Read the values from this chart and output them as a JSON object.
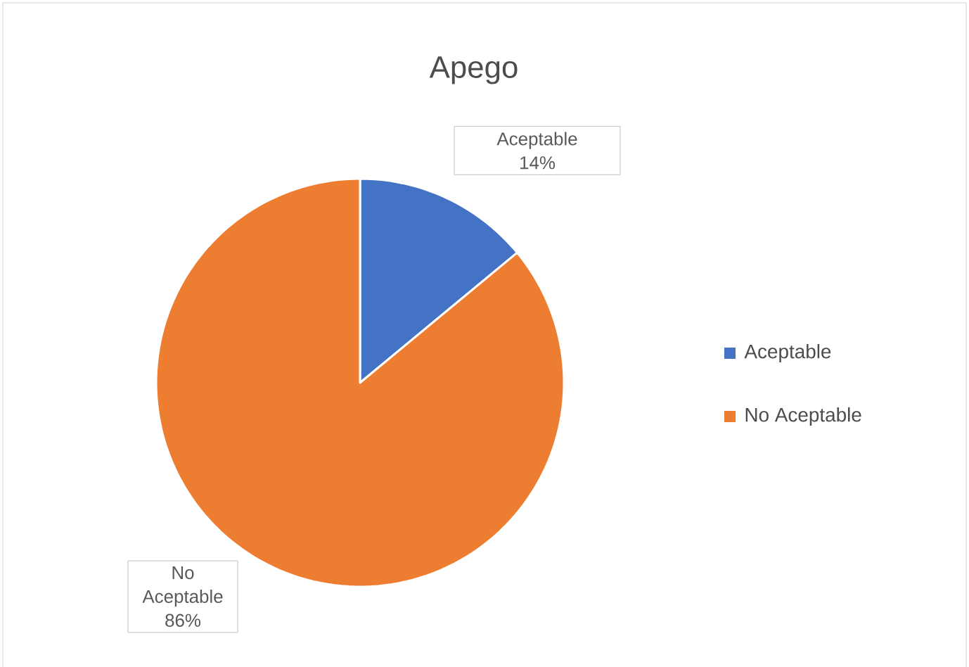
{
  "chart_data": {
    "type": "pie",
    "title": "Apego",
    "categories": [
      "Aceptable",
      "No Aceptable"
    ],
    "values": [
      14,
      86
    ],
    "value_labels": [
      "14%",
      "86%"
    ],
    "colors": [
      "#4472c4",
      "#ed7d31"
    ],
    "legend": "right"
  }
}
